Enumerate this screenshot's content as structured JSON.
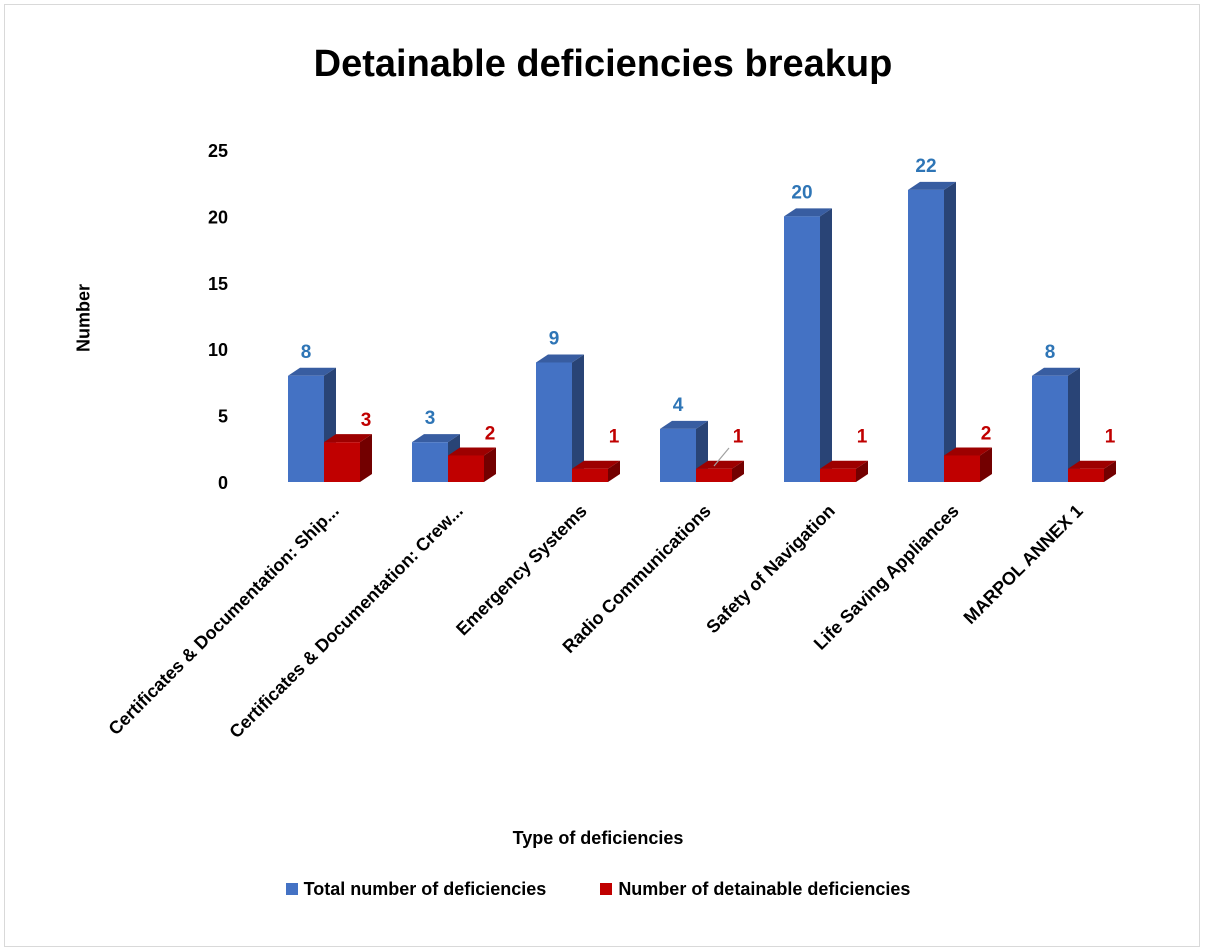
{
  "chart_data": {
    "type": "bar",
    "title": "Detainable deficiencies breakup",
    "xlabel": "Type of deficiencies",
    "ylabel": "Number",
    "ylim": [
      0,
      25
    ],
    "yticks": [
      "0",
      "5",
      "10",
      "15",
      "20",
      "25"
    ],
    "grid": false,
    "legend_position": "bottom",
    "categories": [
      "Certificates & Documentation: Ship...",
      "Certificates & Documentation: Crew...",
      "Emergency Systems",
      "Radio Communications",
      "Safety of Navigation",
      "Life Saving Appliances",
      "MARPOL ANNEX 1"
    ],
    "series": [
      {
        "name": "Total number of deficiencies",
        "values": [
          8,
          3,
          9,
          4,
          20,
          22,
          8
        ],
        "color": "#4472c4",
        "label_color": "#2e75b6"
      },
      {
        "name": "Number of detainable deficiencies",
        "values": [
          3,
          2,
          1,
          1,
          1,
          2,
          1
        ],
        "color": "#c00000",
        "label_color": "#c00000"
      }
    ],
    "data_labels": [
      [
        "8",
        "3",
        "9",
        "4",
        "20",
        "22",
        "8"
      ],
      [
        "3",
        "2",
        "1",
        "1",
        "1",
        "2",
        "1"
      ]
    ]
  }
}
